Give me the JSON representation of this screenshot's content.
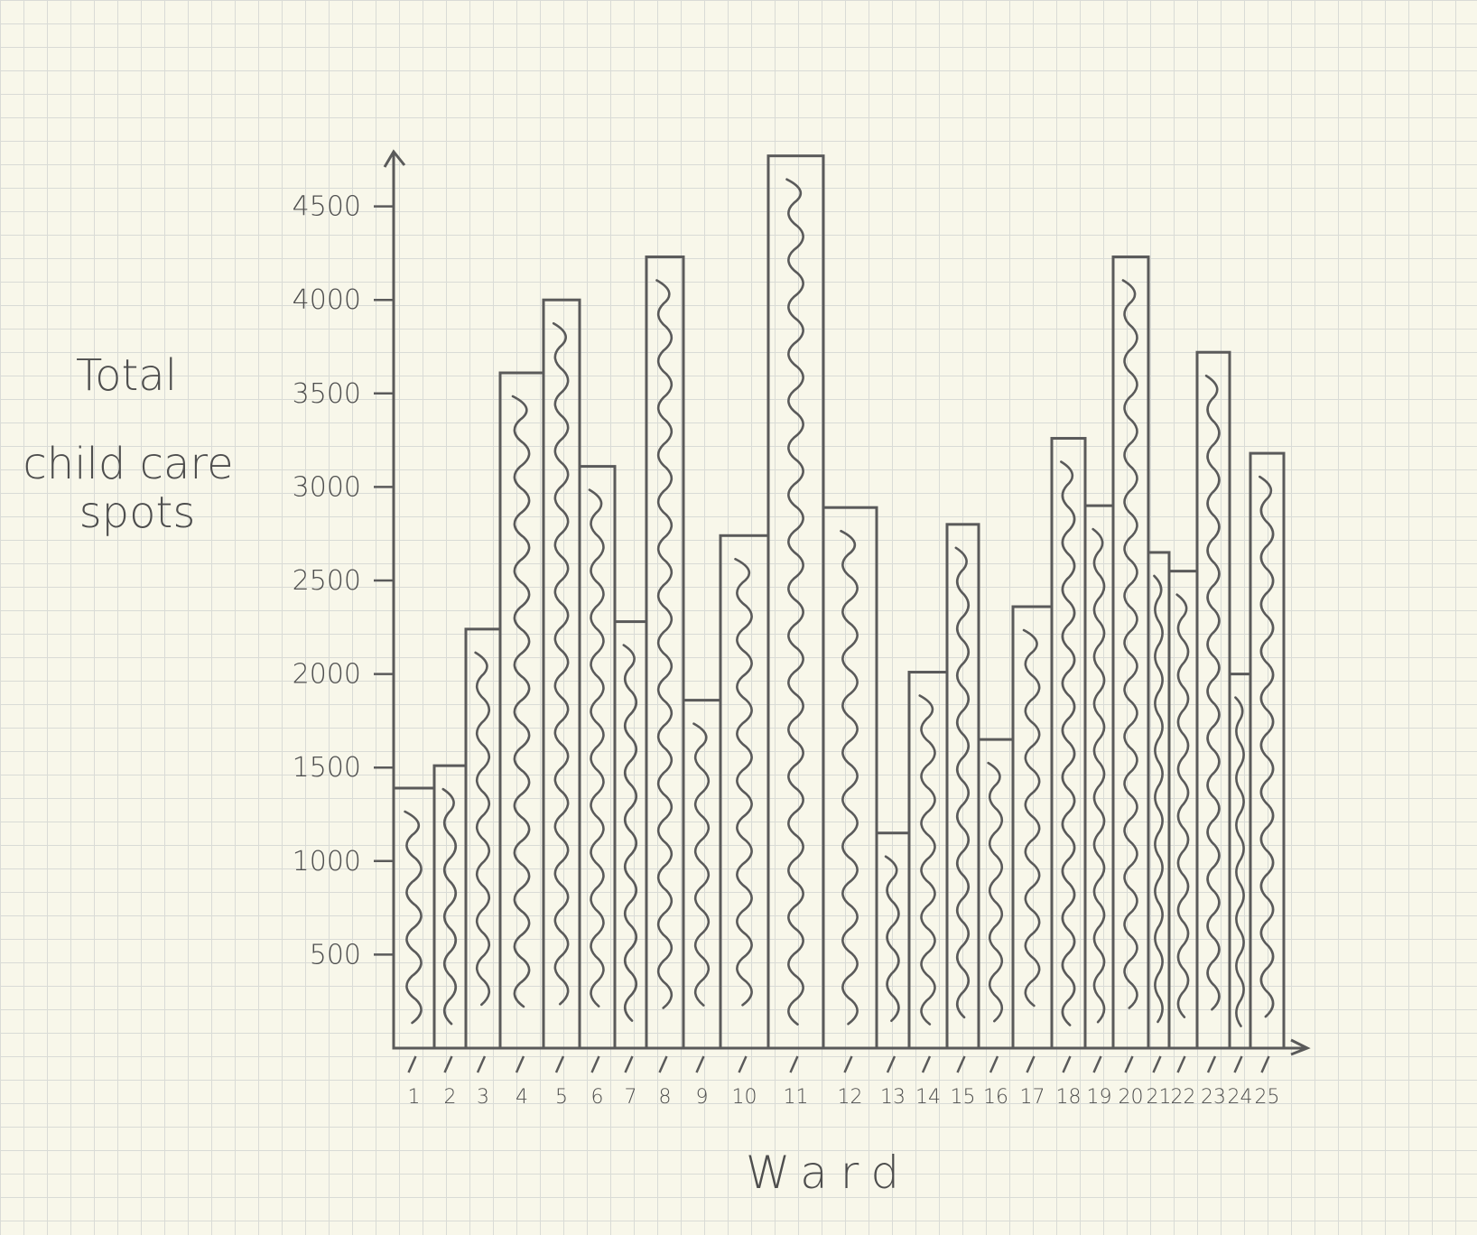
{
  "chart_data": {
    "type": "bar",
    "xlabel": "Ward",
    "ylabel": [
      "Total",
      "child care",
      "spots"
    ],
    "categories": [
      "1",
      "2",
      "3",
      "4",
      "5",
      "6",
      "7",
      "8",
      "9",
      "10",
      "11",
      "12",
      "13",
      "14",
      "15",
      "16",
      "17",
      "18",
      "19",
      "20",
      "21",
      "22",
      "23",
      "24",
      "25"
    ],
    "values": [
      1390,
      1510,
      2240,
      3610,
      4000,
      3110,
      2280,
      4230,
      1860,
      2740,
      4770,
      2890,
      1150,
      2010,
      2800,
      1650,
      2360,
      3260,
      2900,
      4230,
      2650,
      2550,
      3720,
      2000,
      3180
    ],
    "ylim": [
      0,
      4800
    ],
    "yticks": [
      500,
      1000,
      1500,
      2000,
      2500,
      3000,
      3500,
      4000,
      4500
    ],
    "grid": true
  }
}
